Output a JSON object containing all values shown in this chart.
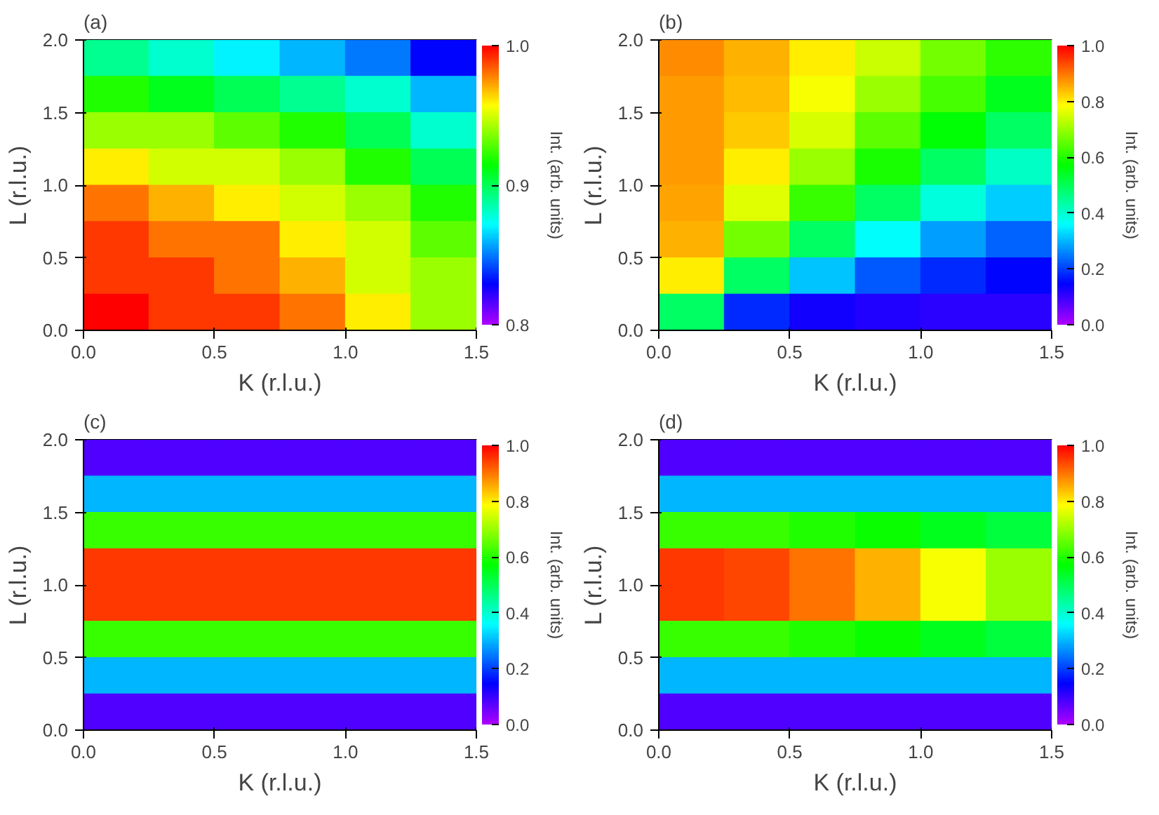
{
  "chart_data": [
    {
      "type": "heatmap",
      "title": "(a)",
      "xlabel": "K (r.l.u.)",
      "ylabel": "L (r.l.u.)",
      "clabel": "Int. (arb. units)",
      "x": [
        0.125,
        0.375,
        0.625,
        0.875,
        1.125,
        1.375
      ],
      "y": [
        1.875,
        1.625,
        1.375,
        1.125,
        0.875,
        0.625,
        0.375,
        0.125
      ],
      "xlim": [
        0,
        1.5
      ],
      "ylim": [
        0,
        2
      ],
      "xticks": [
        {
          "value": 0,
          "label": "0.0"
        },
        {
          "value": 0.5,
          "label": "0.5"
        },
        {
          "value": 1,
          "label": "1.0"
        },
        {
          "value": 1.5,
          "label": "1.5"
        }
      ],
      "yticks": [
        {
          "value": 0,
          "label": "0.0"
        },
        {
          "value": 0.5,
          "label": "0.5"
        },
        {
          "value": 1,
          "label": "1.0"
        },
        {
          "value": 1.5,
          "label": "1.5"
        },
        {
          "value": 2,
          "label": "2.0"
        }
      ],
      "clim": [
        0.8,
        1.0
      ],
      "cticks": [
        {
          "value": 0.8,
          "label": "0.8"
        },
        {
          "value": 0.9,
          "label": "0.9"
        },
        {
          "value": 1.0,
          "label": "1.0"
        }
      ],
      "cells": [
        [
          0.89,
          0.88,
          0.87,
          0.86,
          0.85,
          0.83
        ],
        [
          0.92,
          0.91,
          0.9,
          0.89,
          0.88,
          0.86
        ],
        [
          0.94,
          0.94,
          0.93,
          0.92,
          0.9,
          0.88
        ],
        [
          0.96,
          0.95,
          0.95,
          0.94,
          0.92,
          0.9
        ],
        [
          0.98,
          0.97,
          0.96,
          0.95,
          0.94,
          0.92
        ],
        [
          0.99,
          0.98,
          0.98,
          0.96,
          0.95,
          0.93
        ],
        [
          0.99,
          0.99,
          0.98,
          0.97,
          0.95,
          0.94
        ],
        [
          1.0,
          0.99,
          0.99,
          0.98,
          0.96,
          0.94
        ]
      ]
    },
    {
      "type": "heatmap",
      "title": "(b)",
      "xlabel": "K (r.l.u.)",
      "ylabel": "L (r.l.u.)",
      "clabel": "Int. (arb. units)",
      "x": [
        0.125,
        0.375,
        0.625,
        0.875,
        1.125,
        1.375
      ],
      "y": [
        1.875,
        1.625,
        1.375,
        1.125,
        0.875,
        0.625,
        0.375,
        0.125
      ],
      "xlim": [
        0,
        1.5
      ],
      "ylim": [
        0,
        2
      ],
      "xticks": [
        {
          "value": 0,
          "label": "0.0"
        },
        {
          "value": 0.5,
          "label": "0.5"
        },
        {
          "value": 1,
          "label": "1.0"
        },
        {
          "value": 1.5,
          "label": "1.5"
        }
      ],
      "yticks": [
        {
          "value": 0,
          "label": "0.0"
        },
        {
          "value": 0.5,
          "label": "0.5"
        },
        {
          "value": 1,
          "label": "1.0"
        },
        {
          "value": 1.5,
          "label": "1.5"
        },
        {
          "value": 2,
          "label": "2.0"
        }
      ],
      "clim": [
        0,
        1.0
      ],
      "cticks": [
        {
          "value": 0,
          "label": "0.0"
        },
        {
          "value": 0.2,
          "label": "0.2"
        },
        {
          "value": 0.4,
          "label": "0.4"
        },
        {
          "value": 0.6,
          "label": "0.6"
        },
        {
          "value": 0.8,
          "label": "0.8"
        },
        {
          "value": 1.0,
          "label": "1.0"
        }
      ],
      "cells": [
        [
          0.88,
          0.85,
          0.8,
          0.74,
          0.67,
          0.61
        ],
        [
          0.87,
          0.84,
          0.78,
          0.7,
          0.63,
          0.55
        ],
        [
          0.87,
          0.83,
          0.75,
          0.65,
          0.57,
          0.49
        ],
        [
          0.87,
          0.8,
          0.7,
          0.59,
          0.49,
          0.41
        ],
        [
          0.86,
          0.76,
          0.62,
          0.49,
          0.39,
          0.32
        ],
        [
          0.85,
          0.67,
          0.49,
          0.36,
          0.28,
          0.23
        ],
        [
          0.8,
          0.49,
          0.31,
          0.22,
          0.18,
          0.15
        ],
        [
          0.49,
          0.18,
          0.13,
          0.12,
          0.11,
          0.11
        ]
      ]
    },
    {
      "type": "heatmap",
      "title": "(c)",
      "xlabel": "K (r.l.u.)",
      "ylabel": "L (r.l.u.)",
      "clabel": "Int. (arb. units)",
      "x": [
        0.125,
        0.375,
        0.625,
        0.875,
        1.125,
        1.375
      ],
      "y": [
        1.875,
        1.625,
        1.375,
        1.125,
        0.875,
        0.625,
        0.375,
        0.125
      ],
      "xlim": [
        0,
        1.5
      ],
      "ylim": [
        0,
        2
      ],
      "xticks": [
        {
          "value": 0,
          "label": "0.0"
        },
        {
          "value": 0.5,
          "label": "0.5"
        },
        {
          "value": 1,
          "label": "1.0"
        },
        {
          "value": 1.5,
          "label": "1.5"
        }
      ],
      "yticks": [
        {
          "value": 0,
          "label": "0.0"
        },
        {
          "value": 0.5,
          "label": "0.5"
        },
        {
          "value": 1,
          "label": "1.0"
        },
        {
          "value": 1.5,
          "label": "1.5"
        },
        {
          "value": 2,
          "label": "2.0"
        }
      ],
      "clim": [
        0,
        1.0
      ],
      "cticks": [
        {
          "value": 0,
          "label": "0.0"
        },
        {
          "value": 0.2,
          "label": "0.2"
        },
        {
          "value": 0.4,
          "label": "0.4"
        },
        {
          "value": 0.6,
          "label": "0.6"
        },
        {
          "value": 0.8,
          "label": "0.8"
        },
        {
          "value": 1.0,
          "label": "1.0"
        }
      ],
      "cells": [
        [
          0.08,
          0.08,
          0.08,
          0.08,
          0.08,
          0.08
        ],
        [
          0.3,
          0.3,
          0.3,
          0.3,
          0.3,
          0.3
        ],
        [
          0.62,
          0.62,
          0.62,
          0.62,
          0.62,
          0.62
        ],
        [
          0.95,
          0.95,
          0.95,
          0.95,
          0.95,
          0.95
        ],
        [
          0.95,
          0.95,
          0.95,
          0.95,
          0.95,
          0.95
        ],
        [
          0.62,
          0.62,
          0.62,
          0.62,
          0.62,
          0.62
        ],
        [
          0.3,
          0.3,
          0.3,
          0.3,
          0.3,
          0.3
        ],
        [
          0.08,
          0.08,
          0.08,
          0.08,
          0.08,
          0.08
        ]
      ]
    },
    {
      "type": "heatmap",
      "title": "(d)",
      "xlabel": "K (r.l.u.)",
      "ylabel": "L (r.l.u.)",
      "clabel": "Int. (arb. units)",
      "x": [
        0.125,
        0.375,
        0.625,
        0.875,
        1.125,
        1.375
      ],
      "y": [
        1.875,
        1.625,
        1.375,
        1.125,
        0.875,
        0.625,
        0.375,
        0.125
      ],
      "xlim": [
        0,
        1.5
      ],
      "ylim": [
        0,
        2
      ],
      "xticks": [
        {
          "value": 0,
          "label": "0.0"
        },
        {
          "value": 0.5,
          "label": "0.5"
        },
        {
          "value": 1,
          "label": "1.0"
        },
        {
          "value": 1.5,
          "label": "1.5"
        }
      ],
      "yticks": [
        {
          "value": 0,
          "label": "0.0"
        },
        {
          "value": 0.5,
          "label": "0.5"
        },
        {
          "value": 1,
          "label": "1.0"
        },
        {
          "value": 1.5,
          "label": "1.5"
        },
        {
          "value": 2,
          "label": "2.0"
        }
      ],
      "clim": [
        0,
        1.0
      ],
      "cticks": [
        {
          "value": 0,
          "label": "0.0"
        },
        {
          "value": 0.2,
          "label": "0.2"
        },
        {
          "value": 0.4,
          "label": "0.4"
        },
        {
          "value": 0.6,
          "label": "0.6"
        },
        {
          "value": 0.8,
          "label": "0.8"
        },
        {
          "value": 1.0,
          "label": "1.0"
        }
      ],
      "cells": [
        [
          0.08,
          0.08,
          0.08,
          0.08,
          0.08,
          0.08
        ],
        [
          0.3,
          0.3,
          0.3,
          0.3,
          0.3,
          0.3
        ],
        [
          0.62,
          0.62,
          0.6,
          0.58,
          0.55,
          0.52
        ],
        [
          0.95,
          0.94,
          0.9,
          0.85,
          0.78,
          0.7
        ],
        [
          0.95,
          0.94,
          0.9,
          0.85,
          0.78,
          0.7
        ],
        [
          0.62,
          0.62,
          0.6,
          0.58,
          0.55,
          0.52
        ],
        [
          0.3,
          0.3,
          0.3,
          0.3,
          0.3,
          0.3
        ],
        [
          0.08,
          0.08,
          0.08,
          0.08,
          0.08,
          0.08
        ]
      ]
    }
  ]
}
